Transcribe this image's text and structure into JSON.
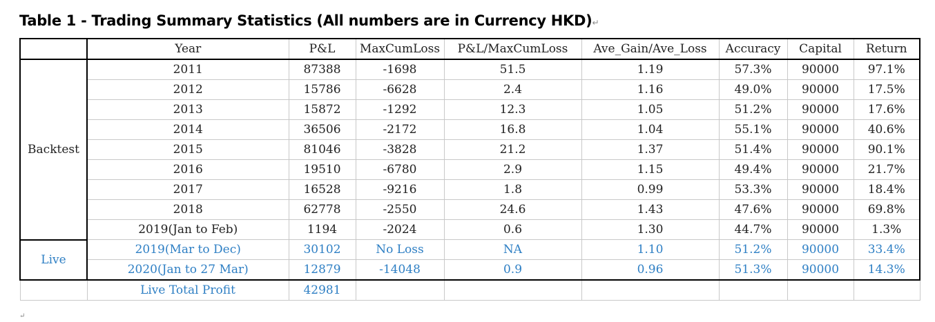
{
  "title": "Table 1 - Trading Summary Statistics (All numbers are in Currency HKD)",
  "title_mark": "↵",
  "columns": [
    "Year",
    "P&L",
    "MaxCumLoss",
    "P&L/MaxCumLoss",
    "Ave_Gain/Ave_Loss",
    "Accuracy",
    "Capital",
    "Return"
  ],
  "groups": {
    "backtest": "Backtest",
    "live": "Live"
  },
  "rows": [
    [
      "2011",
      "87388",
      "-1698",
      "51.5",
      "1.19",
      "57.3%",
      "90000",
      "97.1%"
    ],
    [
      "2012",
      "15786",
      "-6628",
      "2.4",
      "1.16",
      "49.0%",
      "90000",
      "17.5%"
    ],
    [
      "2013",
      "15872",
      "-1292",
      "12.3",
      "1.05",
      "51.2%",
      "90000",
      "17.6%"
    ],
    [
      "2014",
      "36506",
      "-2172",
      "16.8",
      "1.04",
      "55.1%",
      "90000",
      "40.6%"
    ],
    [
      "2015",
      "81046",
      "-3828",
      "21.2",
      "1.37",
      "51.4%",
      "90000",
      "90.1%"
    ],
    [
      "2016",
      "19510",
      "-6780",
      "2.9",
      "1.15",
      "49.4%",
      "90000",
      "21.7%"
    ],
    [
      "2017",
      "16528",
      "-9216",
      "1.8",
      "0.99",
      "53.3%",
      "90000",
      "18.4%"
    ],
    [
      "2018",
      "62778",
      "-2550",
      "24.6",
      "1.43",
      "47.6%",
      "90000",
      "69.8%"
    ],
    [
      "2019(Jan to Feb)",
      "1194",
      "-2024",
      "0.6",
      "1.30",
      "44.7%",
      "90000",
      "1.3%"
    ],
    [
      "2019(Mar to Dec)",
      "30102",
      "No Loss",
      "NA",
      "1.10",
      "51.2%",
      "90000",
      "33.4%"
    ],
    [
      "2020(Jan to 27 Mar)",
      "12879",
      "-14048",
      "0.9",
      "0.96",
      "51.3%",
      "90000",
      "14.3%"
    ]
  ],
  "footer": {
    "label": "Live Total Profit",
    "value": "42981"
  },
  "colors": {
    "live_text": "#2e7fc4",
    "rule": "#000000",
    "grid": "#c8c8c8"
  }
}
